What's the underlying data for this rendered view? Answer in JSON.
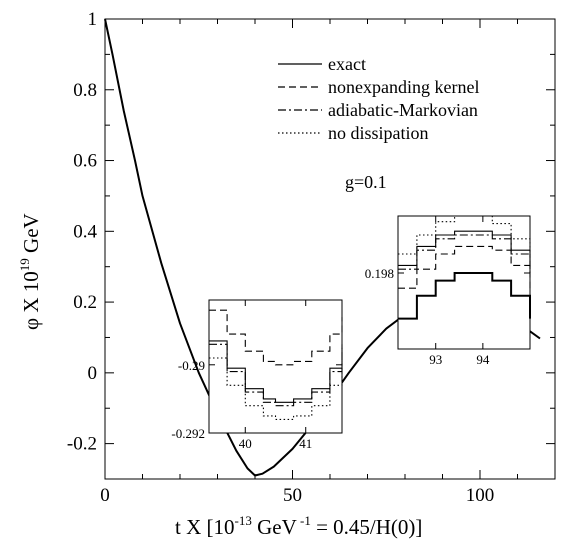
{
  "chart_data": {
    "type": "line",
    "title": "",
    "xlabel": {
      "pre": "t X [10",
      "sup1": "-13",
      "mid": " GeV",
      "sup2": " -1",
      "post": " = 0.45/H(0)]"
    },
    "ylabel": {
      "pre": "φ X 10",
      "sup": "19",
      "post": " GeV"
    },
    "xlim": [
      0,
      120
    ],
    "ylim": [
      -0.3,
      1.0
    ],
    "xticks": [
      0,
      50,
      100
    ],
    "xtick_labels": [
      "0",
      "50",
      "100"
    ],
    "yticks": [
      -0.2,
      0,
      0.2,
      0.4,
      0.6,
      0.8,
      1.0
    ],
    "ytick_labels": [
      "-0.2",
      "0",
      "0.2",
      "0.4",
      "0.6",
      "0.8",
      "1"
    ],
    "legend": {
      "placement": "top-right",
      "entries": [
        {
          "label": "exact",
          "style": "solid"
        },
        {
          "label": "nonexpanding kernel",
          "style": "dashed"
        },
        {
          "label": "adiabatic-Markovian",
          "style": "dashdot"
        },
        {
          "label": "no dissipation",
          "style": "dotted"
        }
      ]
    },
    "annotation": "g=0.1",
    "series": [
      {
        "name": "exact",
        "style": "solid",
        "x": [
          0,
          2,
          5,
          8,
          10,
          15,
          20,
          25,
          30,
          35,
          38,
          40,
          42,
          45,
          50,
          55,
          60,
          65,
          70,
          75,
          80,
          85,
          90,
          93.5,
          97,
          100,
          105,
          110,
          113,
          116
        ],
        "y": [
          1.0,
          0.9,
          0.74,
          0.6,
          0.5,
          0.31,
          0.14,
          0.0,
          -0.115,
          -0.22,
          -0.27,
          -0.29,
          -0.285,
          -0.265,
          -0.215,
          -0.15,
          -0.075,
          0.0,
          0.07,
          0.125,
          0.165,
          0.19,
          0.1985,
          0.199,
          0.195,
          0.185,
          0.163,
          0.138,
          0.12,
          0.097
        ]
      }
    ],
    "insets": [
      {
        "xlim": [
          39.4,
          41.6
        ],
        "ylim": [
          -0.292,
          -0.2881
        ],
        "xticks": [
          40,
          41
        ],
        "xtick_labels": [
          "40",
          "41"
        ],
        "yticks": [
          -0.292,
          -0.29
        ],
        "ytick_labels": [
          "-0.292",
          "-0.29"
        ],
        "series": [
          {
            "name": "nonexpanding kernel",
            "style": "dashed",
            "x": [
              39.4,
              39.7,
              40.0,
              40.3,
              40.5,
              40.8,
              41.1,
              41.4,
              41.6
            ],
            "y": [
              -0.2884,
              -0.2891,
              -0.2896,
              -0.2899,
              -0.29,
              -0.2899,
              -0.2896,
              -0.2891,
              -0.2886
            ]
          },
          {
            "name": "exact",
            "style": "solid",
            "x": [
              39.4,
              39.7,
              40.0,
              40.3,
              40.5,
              40.8,
              41.1,
              41.4,
              41.6
            ],
            "y": [
              -0.2893,
              -0.2901,
              -0.2907,
              -0.291,
              -0.2911,
              -0.291,
              -0.2907,
              -0.2901,
              -0.2894
            ]
          },
          {
            "name": "adiabatic-Markovian",
            "style": "dashdot",
            "x": [
              39.4,
              39.7,
              40.0,
              40.3,
              40.5,
              40.8,
              41.1,
              41.4,
              41.6
            ],
            "y": [
              -0.2894,
              -0.2902,
              -0.2908,
              -0.2911,
              -0.2912,
              -0.2911,
              -0.2908,
              -0.2902,
              -0.2895
            ]
          },
          {
            "name": "no dissipation",
            "style": "dotted",
            "x": [
              39.4,
              39.7,
              40.0,
              40.3,
              40.5,
              40.8,
              41.1,
              41.4,
              41.6
            ],
            "y": [
              -0.2898,
              -0.2906,
              -0.2912,
              -0.2915,
              -0.2916,
              -0.2915,
              -0.2912,
              -0.2906,
              -0.2899
            ]
          }
        ]
      },
      {
        "xlim": [
          92.2,
          95.0
        ],
        "ylim": [
          0.196,
          0.1995
        ],
        "xticks": [
          93,
          94
        ],
        "xtick_labels": [
          "93",
          "94"
        ],
        "yticks": [
          0.198
        ],
        "ytick_labels": [
          "0.198"
        ],
        "series": [
          {
            "name": "no dissipation",
            "style": "dotted",
            "x": [
              92.2,
              92.6,
              93.0,
              93.4,
              93.8,
              94.2,
              94.6,
              95.0
            ],
            "y": [
              0.1985,
              0.199,
              0.19935,
              0.1995,
              0.1995,
              0.1993,
              0.1989,
              0.1984
            ]
          },
          {
            "name": "exact",
            "style": "solid",
            "x": [
              92.2,
              92.6,
              93.0,
              93.4,
              93.8,
              94.2,
              94.6,
              95.0
            ],
            "y": [
              0.1982,
              0.1987,
              0.199,
              0.1991,
              0.1991,
              0.199,
              0.1986,
              0.1981
            ]
          },
          {
            "name": "adiabatic-Markovian",
            "style": "dashdot",
            "x": [
              92.2,
              92.6,
              93.0,
              93.4,
              93.8,
              94.2,
              94.6,
              95.0
            ],
            "y": [
              0.1981,
              0.1986,
              0.1989,
              0.199,
              0.199,
              0.1989,
              0.1985,
              0.198
            ]
          },
          {
            "name": "nonexpanding kernel",
            "style": "dashed",
            "x": [
              92.2,
              92.6,
              93.0,
              93.4,
              93.8,
              94.2,
              94.6,
              95.0
            ],
            "y": [
              0.1976,
              0.1981,
              0.1985,
              0.1987,
              0.1987,
              0.1986,
              0.1982,
              0.1976
            ]
          },
          {
            "name": "exact (main curve)",
            "style": "solid",
            "x": [
              92.2,
              92.6,
              93.0,
              93.4,
              93.8,
              94.2,
              94.6,
              95.0
            ],
            "y": [
              0.1968,
              0.1974,
              0.1978,
              0.198,
              0.198,
              0.1978,
              0.1974,
              0.1968
            ]
          }
        ]
      }
    ]
  }
}
